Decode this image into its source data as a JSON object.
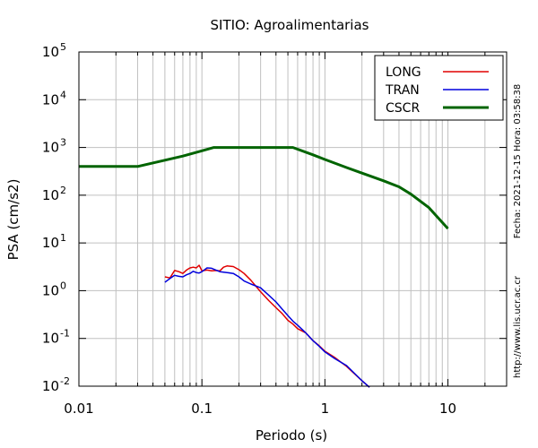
{
  "chart_data": {
    "type": "line",
    "title": "SITIO: Agroalimentarias",
    "xlabel": "Periodo (s)",
    "ylabel": "PSA (cm/s2)",
    "x_scale": "log",
    "y_scale": "log",
    "xlim": [
      0.01,
      30
    ],
    "ylim": [
      0.01,
      100000
    ],
    "grid": true,
    "legend_position": "top-right",
    "x_ticks": [
      {
        "value": 0.01,
        "label": "0.01"
      },
      {
        "value": 0.1,
        "label": "0.1"
      },
      {
        "value": 1,
        "label": "1"
      },
      {
        "value": 10,
        "label": "10"
      }
    ],
    "y_ticks": [
      {
        "value": 0.01,
        "base": "10",
        "exp": "-2"
      },
      {
        "value": 0.1,
        "base": "10",
        "exp": "-1"
      },
      {
        "value": 1,
        "base": "10",
        "exp": "0"
      },
      {
        "value": 10,
        "base": "10",
        "exp": "1"
      },
      {
        "value": 100,
        "base": "10",
        "exp": "2"
      },
      {
        "value": 1000,
        "base": "10",
        "exp": "3"
      },
      {
        "value": 10000,
        "base": "10",
        "exp": "4"
      },
      {
        "value": 100000,
        "base": "10",
        "exp": "5"
      }
    ],
    "series": [
      {
        "name": "LONG",
        "color": "#e00000",
        "x": [
          0.05,
          0.055,
          0.06,
          0.065,
          0.07,
          0.075,
          0.08,
          0.085,
          0.09,
          0.095,
          0.1,
          0.11,
          0.12,
          0.13,
          0.14,
          0.15,
          0.16,
          0.18,
          0.2,
          0.22,
          0.25,
          0.3,
          0.35,
          0.4,
          0.45,
          0.5,
          0.55,
          0.6,
          0.7,
          0.8,
          0.9,
          1.0,
          1.2,
          1.5,
          2.0,
          2.3
        ],
        "y": [
          1.95,
          1.85,
          2.65,
          2.5,
          2.3,
          2.7,
          3.0,
          3.1,
          3.0,
          3.4,
          2.6,
          2.7,
          2.6,
          2.65,
          2.6,
          3.1,
          3.3,
          3.2,
          2.75,
          2.3,
          1.65,
          0.95,
          0.62,
          0.44,
          0.33,
          0.24,
          0.2,
          0.16,
          0.13,
          0.09,
          0.07,
          0.054,
          0.04,
          0.026,
          0.013,
          0.0095
        ]
      },
      {
        "name": "TRAN",
        "color": "#0000dd",
        "x": [
          0.05,
          0.055,
          0.06,
          0.065,
          0.07,
          0.075,
          0.08,
          0.085,
          0.09,
          0.095,
          0.1,
          0.11,
          0.12,
          0.13,
          0.14,
          0.15,
          0.16,
          0.18,
          0.2,
          0.22,
          0.25,
          0.3,
          0.35,
          0.4,
          0.45,
          0.5,
          0.55,
          0.6,
          0.7,
          0.8,
          0.9,
          1.0,
          1.2,
          1.5,
          2.0,
          2.3
        ],
        "y": [
          1.5,
          1.8,
          2.1,
          2.0,
          1.95,
          2.15,
          2.3,
          2.55,
          2.4,
          2.35,
          2.5,
          3.0,
          2.95,
          2.7,
          2.5,
          2.45,
          2.4,
          2.3,
          1.95,
          1.6,
          1.38,
          1.15,
          0.8,
          0.58,
          0.41,
          0.3,
          0.23,
          0.19,
          0.13,
          0.09,
          0.068,
          0.052,
          0.038,
          0.027,
          0.013,
          0.0095
        ]
      },
      {
        "name": "CSCR",
        "color": "#006400",
        "x": [
          0.01,
          0.03,
          0.05,
          0.07,
          0.1,
          0.125,
          0.2,
          0.3,
          0.4,
          0.55,
          0.8,
          1.0,
          1.5,
          2.0,
          3.0,
          4.0,
          5.0,
          7.0,
          10.0
        ],
        "y": [
          400,
          400,
          540,
          660,
          850,
          1000,
          1000,
          1000,
          1000,
          1000,
          700,
          560,
          380,
          290,
          200,
          150,
          105,
          55,
          20
        ]
      }
    ]
  },
  "side_notes": {
    "fecha": "Fecha: 2021-12-15 Hora: 03:58:38",
    "url": "http://www.lis.ucr.ac.cr"
  }
}
